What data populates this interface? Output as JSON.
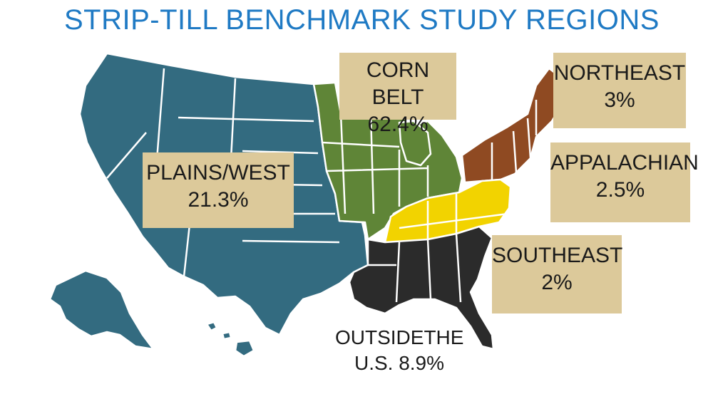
{
  "title": "STRIP-TILL BENCHMARK STUDY REGIONS",
  "regions": [
    {
      "key": "corn_belt",
      "name": "CORN BELT",
      "value": "62.4%",
      "color": "#5f8537"
    },
    {
      "key": "northeast",
      "name": "NORTHEAST",
      "value": "3%",
      "color": "#8f4a22"
    },
    {
      "key": "plains",
      "name": "PLAINS/WEST",
      "value": "21.3%",
      "color": "#336b80"
    },
    {
      "key": "appalachian",
      "name": "APPALACHIAN",
      "value": "2.5%",
      "color": "#f2d300"
    },
    {
      "key": "southeast",
      "name": "SOUTHEAST",
      "value": "2%",
      "color": "#2b2b2b"
    }
  ],
  "outside": {
    "line1": "OUTSIDETHE",
    "line2": "U.S. 8.9%"
  },
  "colors": {
    "title": "#1f7ac4",
    "label_box": "#dcc99a",
    "text": "#1a1a1a",
    "state_border": "#ffffff"
  }
}
